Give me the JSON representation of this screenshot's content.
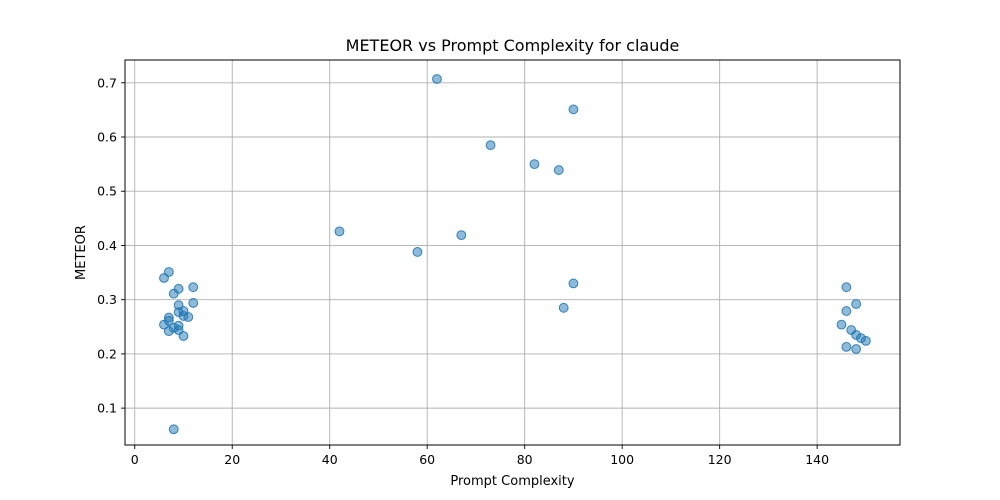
{
  "chart_data": {
    "type": "scatter",
    "title": "METEOR vs Prompt Complexity for claude",
    "xlabel": "Prompt Complexity",
    "ylabel": "METEOR",
    "xlim": [
      -2,
      157
    ],
    "ylim": [
      0.032,
      0.742
    ],
    "xticks": [
      0,
      20,
      40,
      60,
      80,
      100,
      120,
      140
    ],
    "yticks": [
      0.1,
      0.2,
      0.3,
      0.4,
      0.5,
      0.6,
      0.7
    ],
    "grid": true,
    "color": "#1f77b4",
    "points": [
      {
        "x": 6,
        "y": 0.34
      },
      {
        "x": 7,
        "y": 0.351
      },
      {
        "x": 9,
        "y": 0.32
      },
      {
        "x": 8,
        "y": 0.311
      },
      {
        "x": 12,
        "y": 0.323
      },
      {
        "x": 9,
        "y": 0.29
      },
      {
        "x": 12,
        "y": 0.294
      },
      {
        "x": 9,
        "y": 0.277
      },
      {
        "x": 10,
        "y": 0.279
      },
      {
        "x": 10,
        "y": 0.27
      },
      {
        "x": 11,
        "y": 0.268
      },
      {
        "x": 7,
        "y": 0.267
      },
      {
        "x": 7,
        "y": 0.261
      },
      {
        "x": 6,
        "y": 0.254
      },
      {
        "x": 9,
        "y": 0.252
      },
      {
        "x": 8,
        "y": 0.248
      },
      {
        "x": 9,
        "y": 0.244
      },
      {
        "x": 7,
        "y": 0.242
      },
      {
        "x": 10,
        "y": 0.233
      },
      {
        "x": 8,
        "y": 0.061
      },
      {
        "x": 42,
        "y": 0.426
      },
      {
        "x": 58,
        "y": 0.388
      },
      {
        "x": 62,
        "y": 0.707
      },
      {
        "x": 67,
        "y": 0.419
      },
      {
        "x": 73,
        "y": 0.585
      },
      {
        "x": 82,
        "y": 0.55
      },
      {
        "x": 87,
        "y": 0.539
      },
      {
        "x": 88,
        "y": 0.285
      },
      {
        "x": 90,
        "y": 0.651
      },
      {
        "x": 90,
        "y": 0.33
      },
      {
        "x": 146,
        "y": 0.323
      },
      {
        "x": 148,
        "y": 0.292
      },
      {
        "x": 146,
        "y": 0.279
      },
      {
        "x": 145,
        "y": 0.254
      },
      {
        "x": 147,
        "y": 0.244
      },
      {
        "x": 148,
        "y": 0.235
      },
      {
        "x": 149,
        "y": 0.229
      },
      {
        "x": 150,
        "y": 0.224
      },
      {
        "x": 146,
        "y": 0.213
      },
      {
        "x": 148,
        "y": 0.209
      }
    ]
  }
}
